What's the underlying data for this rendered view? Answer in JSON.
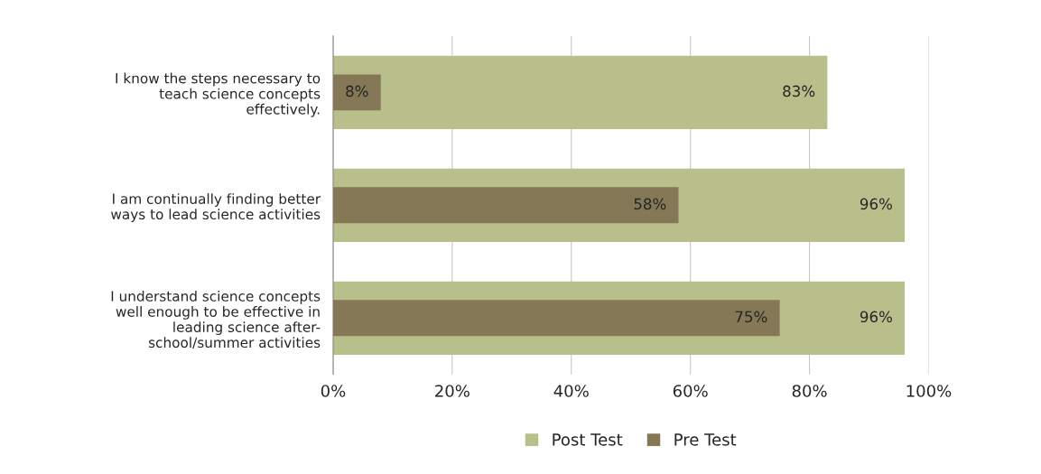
{
  "chart_data": {
    "type": "bar",
    "orientation": "horizontal",
    "categories": [
      "I know the steps necessary to\nteach science concepts\neffectively.",
      "I am continually finding better\nways to lead science activities",
      "I understand science concepts\nwell enough to be effective in\nleading science after-\nschool/summer activities"
    ],
    "series": [
      {
        "name": "Post Test",
        "color": "#b8bf8a",
        "values": [
          83,
          96,
          96
        ],
        "value_labels": [
          "83%",
          "96%",
          "96%"
        ]
      },
      {
        "name": "Pre Test",
        "color": "#857856",
        "values": [
          8,
          58,
          75
        ],
        "value_labels": [
          "8%",
          "58%",
          "75%"
        ]
      }
    ],
    "xlim": [
      0,
      100
    ],
    "xticks": [
      {
        "value": 0,
        "label": "0%"
      },
      {
        "value": 20,
        "label": "20%"
      },
      {
        "value": 40,
        "label": "40%"
      },
      {
        "value": 60,
        "label": "60%"
      },
      {
        "value": 80,
        "label": "80%"
      },
      {
        "value": 100,
        "label": "100%"
      }
    ],
    "grid": "x",
    "legend": "bottom"
  }
}
